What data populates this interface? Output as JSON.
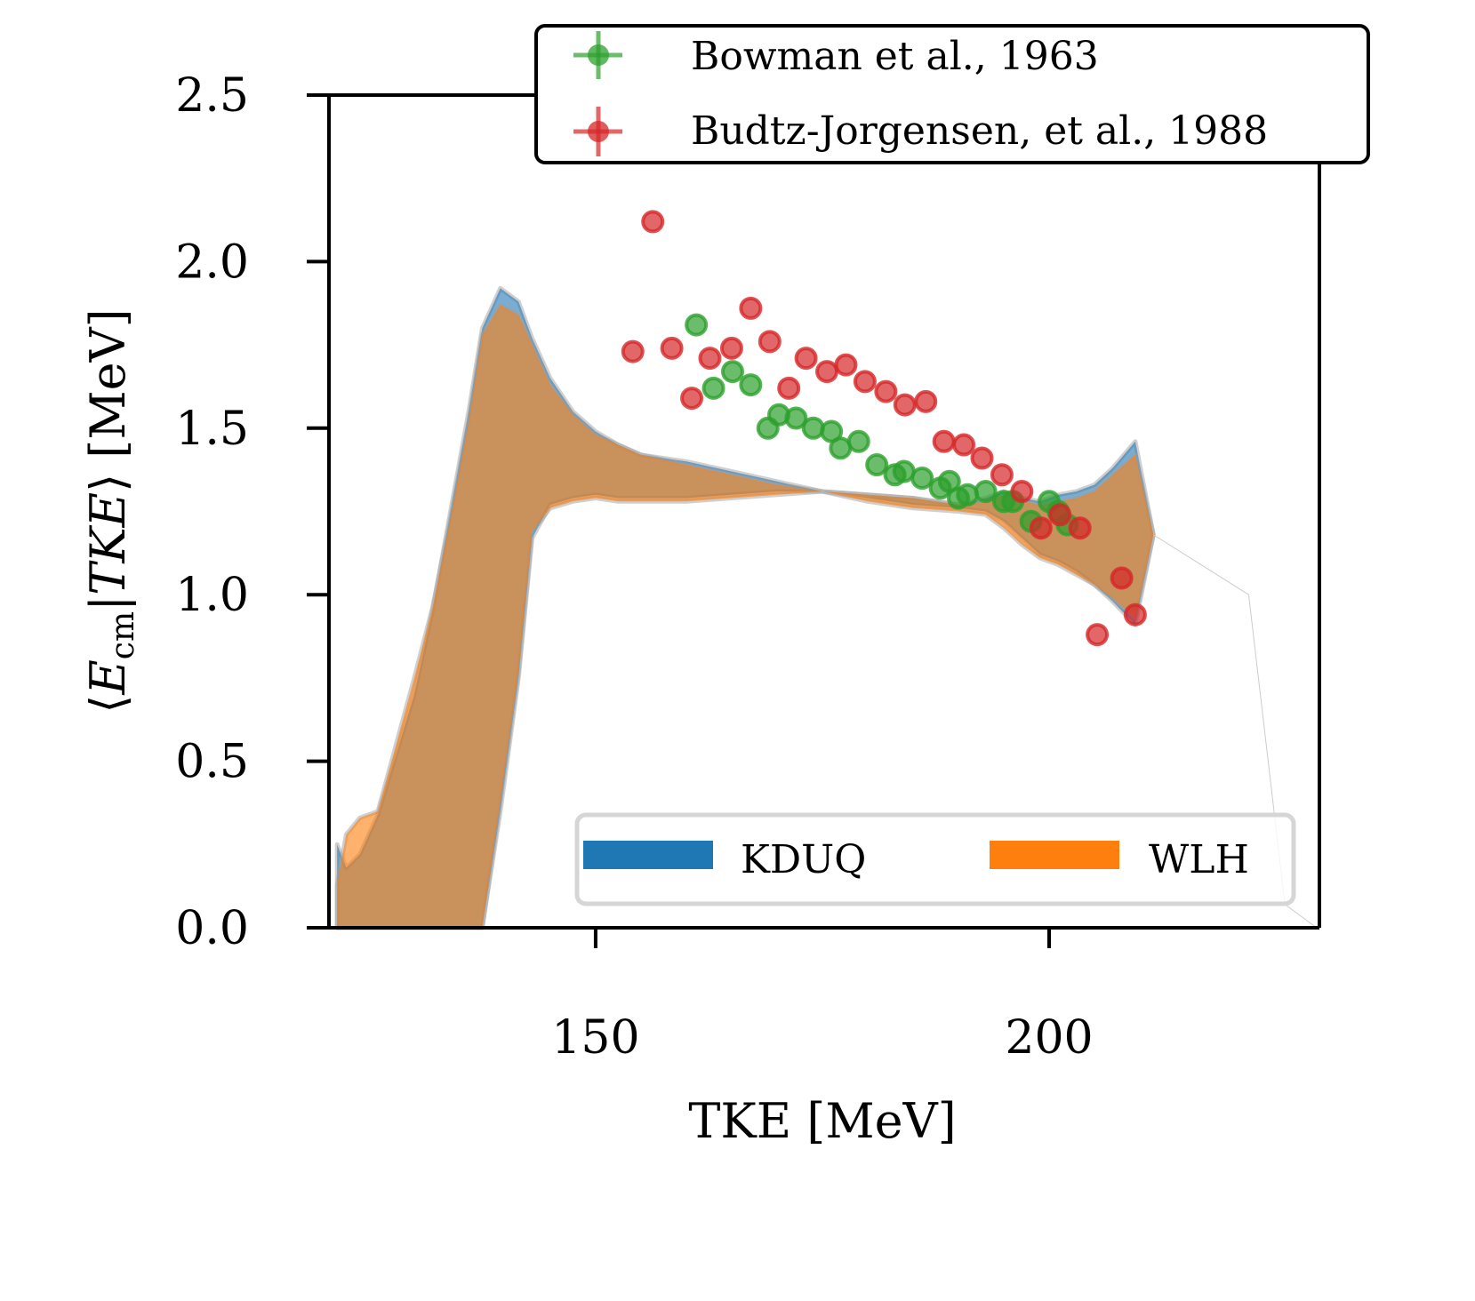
{
  "chart_data": {
    "type": "scatter",
    "title": "",
    "xlabel": "TKE [MeV]",
    "ylabel": "⟨E_cm|TKE⟩ [MeV]",
    "ylabel_parts": {
      "open": "⟨",
      "main": "E",
      "sub": "cm",
      "mid": "|TKE",
      "close": "⟩ [MeV]"
    },
    "xlim": [
      120.6,
      229.8
    ],
    "ylim": [
      0.0,
      2.5
    ],
    "xticks": [
      150,
      200
    ],
    "xtick_labels": [
      "150",
      "200"
    ],
    "yticks": [
      0.0,
      0.5,
      1.0,
      1.5,
      2.0,
      2.5
    ],
    "ytick_labels": [
      "0.0",
      "0.5",
      "1.0",
      "1.5",
      "2.0",
      "2.5"
    ],
    "grid": false,
    "bands": [
      {
        "name": "KDUQ",
        "color": "#1f77b4",
        "x": [
          121.5,
          122.5,
          124,
          126,
          128,
          130,
          132,
          134,
          136,
          137.5,
          139.5,
          141.5,
          143,
          145,
          147.5,
          150,
          152.5,
          155,
          160,
          165,
          170,
          175,
          180,
          185,
          190,
          193,
          195,
          197,
          199,
          201,
          203,
          205,
          207,
          209.5,
          211.5
        ],
        "upper": [
          0.25,
          0.18,
          0.22,
          0.34,
          0.52,
          0.7,
          0.95,
          1.25,
          1.55,
          1.8,
          1.92,
          1.88,
          1.77,
          1.65,
          1.55,
          1.49,
          1.45,
          1.42,
          1.4,
          1.37,
          1.34,
          1.31,
          1.3,
          1.29,
          1.27,
          1.29,
          1.31,
          1.29,
          1.28,
          1.3,
          1.31,
          1.33,
          1.38,
          1.46,
          1.18
        ],
        "lower": [
          0.0,
          0.0,
          0.0,
          0.0,
          0.0,
          0.0,
          0.0,
          0.0,
          0.0,
          0.0,
          0.35,
          0.75,
          1.17,
          1.27,
          1.29,
          1.3,
          1.29,
          1.29,
          1.29,
          1.3,
          1.31,
          1.31,
          1.29,
          1.27,
          1.26,
          1.25,
          1.22,
          1.17,
          1.12,
          1.1,
          1.07,
          1.03,
          0.98,
          0.91,
          1.18
        ]
      },
      {
        "name": "WLH",
        "color": "#ff7f0e",
        "x": [
          121.5,
          122.5,
          124,
          126,
          128,
          130,
          132,
          134,
          136,
          137.5,
          139.5,
          141.5,
          143,
          145,
          147.5,
          150,
          152.5,
          155,
          160,
          165,
          170,
          175,
          180,
          185,
          190,
          193,
          195,
          197,
          199,
          201,
          203,
          205,
          207,
          209.5,
          211.5
        ],
        "upper": [
          0.13,
          0.28,
          0.33,
          0.35,
          0.55,
          0.75,
          0.96,
          1.23,
          1.52,
          1.78,
          1.87,
          1.84,
          1.75,
          1.63,
          1.54,
          1.48,
          1.45,
          1.42,
          1.39,
          1.36,
          1.33,
          1.31,
          1.3,
          1.29,
          1.27,
          1.28,
          1.3,
          1.28,
          1.27,
          1.28,
          1.29,
          1.31,
          1.36,
          1.42,
          1.18
        ],
        "lower": [
          0.0,
          0.0,
          0.0,
          0.0,
          0.0,
          0.0,
          0.0,
          0.0,
          0.0,
          0.0,
          0.38,
          0.77,
          1.19,
          1.26,
          1.28,
          1.29,
          1.28,
          1.28,
          1.28,
          1.29,
          1.3,
          1.31,
          1.28,
          1.26,
          1.25,
          1.24,
          1.2,
          1.15,
          1.11,
          1.09,
          1.06,
          1.03,
          0.99,
          0.93,
          1.18
        ]
      }
    ],
    "series": [
      {
        "name": "Bowman et al., 1963",
        "color": "#2ca02c",
        "x": [
          161.1,
          163.0,
          165.1,
          167.1,
          169.0,
          170.2,
          172.1,
          174.0,
          176.0,
          177.0,
          179.0,
          181.0,
          183.0,
          184.0,
          186.0,
          188.0,
          189.0,
          190.0,
          191.0,
          193.0,
          195.0,
          196.0,
          198.0,
          200.0,
          201.0,
          202.0
        ],
        "y": [
          1.81,
          1.62,
          1.67,
          1.63,
          1.5,
          1.54,
          1.53,
          1.5,
          1.49,
          1.44,
          1.46,
          1.39,
          1.36,
          1.37,
          1.35,
          1.32,
          1.34,
          1.29,
          1.3,
          1.31,
          1.28,
          1.28,
          1.22,
          1.28,
          1.25,
          1.21
        ]
      },
      {
        "name": "Budtz-Jorgensen, et al., 1988",
        "color": "#d62728",
        "x": [
          154.1,
          156.3,
          158.4,
          160.6,
          162.6,
          165.0,
          167.1,
          169.2,
          171.3,
          173.2,
          175.5,
          177.6,
          179.7,
          182.0,
          184.1,
          186.4,
          188.4,
          190.6,
          192.6,
          194.8,
          197.0,
          199.1,
          201.2,
          203.4,
          205.3,
          208.0,
          209.5
        ],
        "y": [
          1.73,
          2.12,
          1.74,
          1.59,
          1.71,
          1.74,
          1.86,
          1.76,
          1.62,
          1.71,
          1.67,
          1.69,
          1.64,
          1.61,
          1.57,
          1.58,
          1.46,
          1.45,
          1.41,
          1.36,
          1.31,
          1.2,
          1.24,
          1.2,
          0.88,
          1.05,
          0.94
        ]
      }
    ],
    "legend_top": {
      "placement": "top-right (above axes)",
      "entries": [
        "Bowman et al., 1963",
        "Budtz-Jorgensen, et al., 1988"
      ]
    },
    "legend_bottom": {
      "placement": "lower-right",
      "entries": [
        "KDUQ",
        "WLH"
      ]
    }
  }
}
